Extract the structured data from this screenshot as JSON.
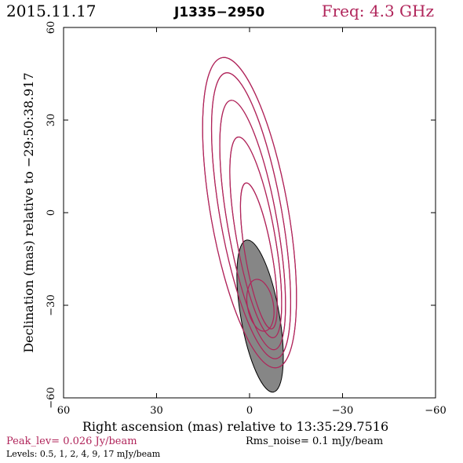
{
  "header": {
    "date": "2015.11.17",
    "source": "J1335−2950",
    "freq": "Freq: 4.3 GHz"
  },
  "colors": {
    "contour": "#b0245a",
    "beam_fill": "#808080",
    "text_accent": "#b0245a",
    "axes": "#000000"
  },
  "chart_data": {
    "type": "contour",
    "xlabel": "Right ascension (mas) relative to 13:35:29.7516",
    "ylabel": "Declination (mas) relative to −29:50:38.917",
    "xlim": [
      60,
      -60
    ],
    "ylim": [
      -60,
      60
    ],
    "xticks": [
      60,
      30,
      0,
      -30,
      -60
    ],
    "yticks": [
      60,
      30,
      0,
      -30,
      -60
    ],
    "xtick_labels": [
      "60",
      "30",
      "0",
      "−30",
      "−60"
    ],
    "ytick_labels": [
      "60",
      "30",
      "0",
      "−30",
      "−60"
    ],
    "contour_levels_mJy_per_beam": [
      0.5,
      1,
      2,
      4,
      9,
      17
    ],
    "contours": [
      {
        "level": 0.5,
        "center": [
          0,
          0
        ],
        "semi_major": 51,
        "semi_minor": 12.5,
        "pa_deg": -10
      },
      {
        "level": 1,
        "center": [
          -0.5,
          -1
        ],
        "semi_major": 47,
        "semi_minor": 10,
        "pa_deg": -10
      },
      {
        "level": 2,
        "center": [
          -1,
          -4
        ],
        "semi_major": 41,
        "semi_minor": 8,
        "pa_deg": -10
      },
      {
        "level": 4,
        "center": [
          -2,
          -8
        ],
        "semi_major": 33,
        "semi_minor": 6.2,
        "pa_deg": -10
      },
      {
        "level": 9,
        "center": [
          -3,
          -14
        ],
        "semi_major": 24,
        "semi_minor": 4.3,
        "pa_deg": -10
      },
      {
        "level": 17,
        "center": [
          -3.5,
          -30
        ],
        "semi_major": 8.5,
        "semi_minor": 4.2,
        "pa_deg": -10
      }
    ],
    "beam": {
      "center": [
        -3.4,
        -33.5
      ],
      "semi_major": 25,
      "semi_minor": 4,
      "pa_deg": -10
    },
    "footer": {
      "peak": "Peak_lev=  0.026 Jy/beam",
      "rms": "Rms_noise=   0.1 mJy/beam",
      "levels": "Levels: 0.5,    1,    2,    4,    9,   17 mJy/beam"
    }
  }
}
